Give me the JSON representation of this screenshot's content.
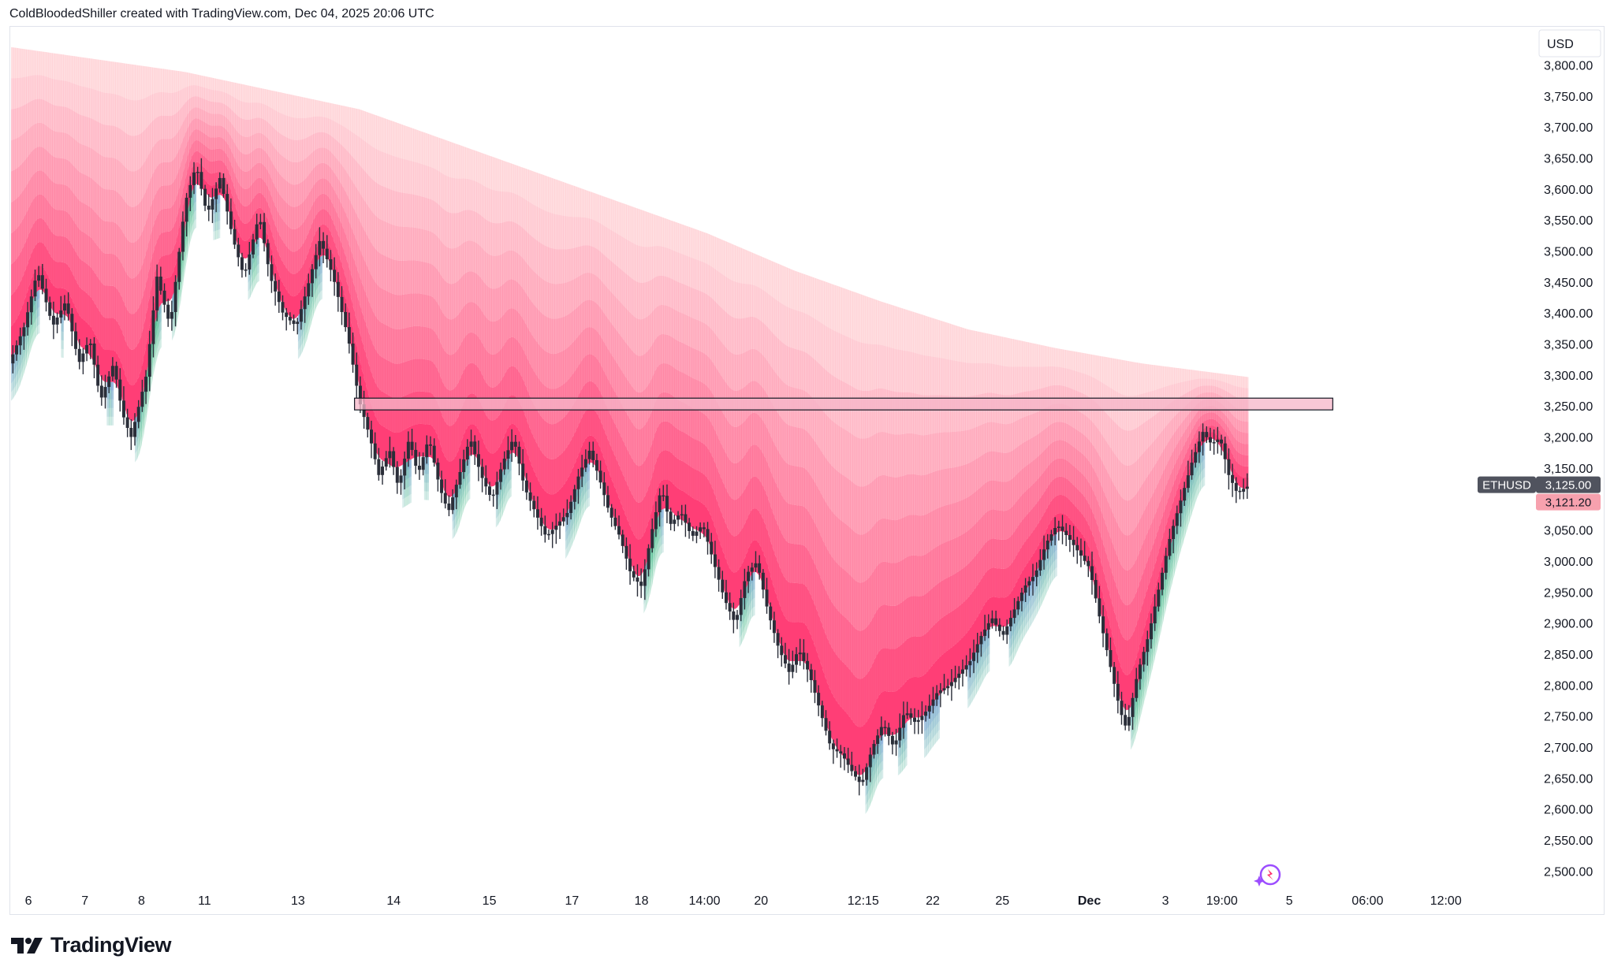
{
  "header": {
    "attribution": "ColdBloodedShiller created with TradingView.com, Dec 04, 2025 20:06 UTC"
  },
  "footer": {
    "brand": "TradingView"
  },
  "colors": {
    "bear_ribbon": "#ff2d6b",
    "bull_ribbon": "#36b37e",
    "transition": "#8a9cf0",
    "candle": "#2a2e39",
    "resistance_zone_fill": "#f7b6c8",
    "last_price_bg": "#50535e",
    "secondary_price_bg": "#f7a1ae"
  },
  "chart_data": {
    "type": "candlestick",
    "symbol": "ETHUSD",
    "currency": "USD",
    "y_scale": "linear",
    "ylim": [
      2470,
      3840
    ],
    "y_ticks": [
      "3,800.00",
      "3,750.00",
      "3,700.00",
      "3,650.00",
      "3,600.00",
      "3,550.00",
      "3,500.00",
      "3,450.00",
      "3,400.00",
      "3,350.00",
      "3,300.00",
      "3,250.00",
      "3,200.00",
      "3,150.00",
      "3,050.00",
      "3,000.00",
      "2,950.00",
      "2,900.00",
      "2,850.00",
      "2,800.00",
      "2,750.00",
      "2,700.00",
      "2,650.00",
      "2,600.00",
      "2,550.00",
      "2,500.00"
    ],
    "y_tick_values": [
      3800,
      3750,
      3700,
      3650,
      3600,
      3550,
      3500,
      3450,
      3400,
      3350,
      3300,
      3250,
      3200,
      3150,
      3050,
      3000,
      2950,
      2900,
      2850,
      2800,
      2750,
      2700,
      2650,
      2600,
      2550,
      2500
    ],
    "x_range_days": [
      0,
      35
    ],
    "x_ticks": [
      {
        "label": "6",
        "day": 0.4
      },
      {
        "label": "7",
        "day": 1.7
      },
      {
        "label": "8",
        "day": 3.0
      },
      {
        "label": "11",
        "day": 4.45
      },
      {
        "label": "13",
        "day": 6.6
      },
      {
        "label": "14",
        "day": 8.8
      },
      {
        "label": "15",
        "day": 11.0
      },
      {
        "label": "17",
        "day": 12.9
      },
      {
        "label": "18",
        "day": 14.5
      },
      {
        "label": "14:00",
        "day": 15.95
      },
      {
        "label": "20",
        "day": 17.25
      },
      {
        "label": "12:15",
        "day": 19.6
      },
      {
        "label": "22",
        "day": 21.2
      },
      {
        "label": "25",
        "day": 22.8
      },
      {
        "label": "Dec",
        "day": 24.8
      },
      {
        "label": "3",
        "day": 26.55
      },
      {
        "label": "19:00",
        "day": 27.85
      },
      {
        "label": "5",
        "day": 29.4
      },
      {
        "label": "06:00",
        "day": 31.2
      },
      {
        "label": "12:00",
        "day": 33.0
      }
    ],
    "price_keypoints": [
      [
        0,
        3320
      ],
      [
        0.35,
        3380
      ],
      [
        0.65,
        3470
      ],
      [
        1.0,
        3380
      ],
      [
        1.3,
        3420
      ],
      [
        1.6,
        3320
      ],
      [
        1.85,
        3360
      ],
      [
        2.1,
        3260
      ],
      [
        2.4,
        3320
      ],
      [
        2.6,
        3240
      ],
      [
        2.8,
        3200
      ],
      [
        3.15,
        3300
      ],
      [
        3.4,
        3460
      ],
      [
        3.7,
        3380
      ],
      [
        4.05,
        3580
      ],
      [
        4.3,
        3640
      ],
      [
        4.55,
        3560
      ],
      [
        4.85,
        3620
      ],
      [
        5.15,
        3520
      ],
      [
        5.4,
        3460
      ],
      [
        5.75,
        3560
      ],
      [
        6.0,
        3460
      ],
      [
        6.3,
        3400
      ],
      [
        6.6,
        3380
      ],
      [
        6.85,
        3440
      ],
      [
        7.15,
        3520
      ],
      [
        7.45,
        3460
      ],
      [
        7.8,
        3360
      ],
      [
        8.05,
        3260
      ],
      [
        8.3,
        3200
      ],
      [
        8.5,
        3140
      ],
      [
        8.75,
        3180
      ],
      [
        8.95,
        3120
      ],
      [
        9.2,
        3200
      ],
      [
        9.4,
        3140
      ],
      [
        9.65,
        3200
      ],
      [
        9.9,
        3120
      ],
      [
        10.1,
        3080
      ],
      [
        10.35,
        3140
      ],
      [
        10.6,
        3200
      ],
      [
        10.85,
        3140
      ],
      [
        11.1,
        3100
      ],
      [
        11.35,
        3160
      ],
      [
        11.6,
        3200
      ],
      [
        11.85,
        3120
      ],
      [
        12.1,
        3080
      ],
      [
        12.35,
        3040
      ],
      [
        12.6,
        3060
      ],
      [
        12.85,
        3080
      ],
      [
        13.1,
        3140
      ],
      [
        13.35,
        3180
      ],
      [
        13.55,
        3140
      ],
      [
        13.8,
        3080
      ],
      [
        14.05,
        3040
      ],
      [
        14.3,
        2980
      ],
      [
        14.55,
        2960
      ],
      [
        14.75,
        3040
      ],
      [
        15.0,
        3120
      ],
      [
        15.2,
        3060
      ],
      [
        15.45,
        3080
      ],
      [
        15.7,
        3040
      ],
      [
        15.95,
        3060
      ],
      [
        16.2,
        3000
      ],
      [
        16.45,
        2940
      ],
      [
        16.7,
        2900
      ],
      [
        16.95,
        2980
      ],
      [
        17.2,
        3000
      ],
      [
        17.45,
        2920
      ],
      [
        17.7,
        2860
      ],
      [
        17.95,
        2820
      ],
      [
        18.15,
        2860
      ],
      [
        18.4,
        2820
      ],
      [
        18.65,
        2760
      ],
      [
        18.9,
        2700
      ],
      [
        19.15,
        2690
      ],
      [
        19.4,
        2660
      ],
      [
        19.6,
        2640
      ],
      [
        19.85,
        2700
      ],
      [
        20.1,
        2740
      ],
      [
        20.35,
        2700
      ],
      [
        20.6,
        2760
      ],
      [
        20.85,
        2740
      ],
      [
        21.1,
        2760
      ],
      [
        21.35,
        2790
      ],
      [
        21.6,
        2800
      ],
      [
        21.85,
        2820
      ],
      [
        22.1,
        2840
      ],
      [
        22.35,
        2880
      ],
      [
        22.6,
        2910
      ],
      [
        22.85,
        2880
      ],
      [
        23.1,
        2920
      ],
      [
        23.35,
        2960
      ],
      [
        23.6,
        2980
      ],
      [
        23.85,
        3030
      ],
      [
        24.1,
        3060
      ],
      [
        24.35,
        3040
      ],
      [
        24.55,
        3020
      ],
      [
        24.85,
        2990
      ],
      [
        25.05,
        2920
      ],
      [
        25.3,
        2840
      ],
      [
        25.55,
        2760
      ],
      [
        25.7,
        2730
      ],
      [
        25.95,
        2820
      ],
      [
        26.2,
        2880
      ],
      [
        26.45,
        2960
      ],
      [
        26.7,
        3040
      ],
      [
        26.95,
        3100
      ],
      [
        27.2,
        3160
      ],
      [
        27.45,
        3210
      ],
      [
        27.65,
        3190
      ],
      [
        27.85,
        3200
      ],
      [
        28.05,
        3140
      ],
      [
        28.25,
        3110
      ],
      [
        28.45,
        3121.2
      ]
    ],
    "ribbon_top_keypoints": [
      [
        0,
        3830
      ],
      [
        2,
        3810
      ],
      [
        4,
        3790
      ],
      [
        6,
        3760
      ],
      [
        8,
        3730
      ],
      [
        10,
        3680
      ],
      [
        12,
        3630
      ],
      [
        14,
        3580
      ],
      [
        16,
        3530
      ],
      [
        18,
        3470
      ],
      [
        20,
        3420
      ],
      [
        22,
        3375
      ],
      [
        24,
        3345
      ],
      [
        26,
        3320
      ],
      [
        28,
        3302
      ],
      [
        28.45,
        3298
      ]
    ],
    "ribbon_count": 10,
    "resistance_zone": {
      "y_low": 3245,
      "y_high": 3264,
      "day_start": 7.9,
      "day_end": 30.4
    },
    "last_price": {
      "label": "ETHUSD",
      "value": "3,125.00"
    },
    "secondary_price": {
      "value": "3,121.20"
    }
  }
}
